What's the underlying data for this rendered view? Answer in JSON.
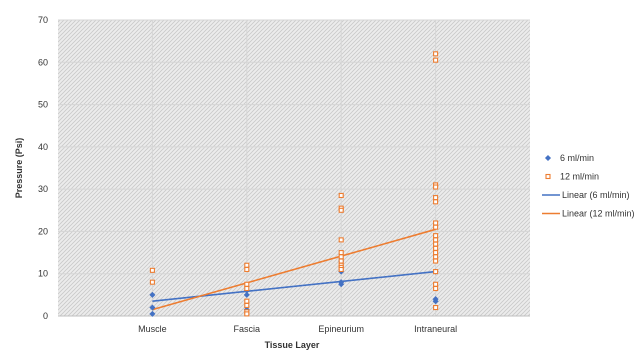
{
  "chart_data": {
    "type": "scatter",
    "title": "",
    "xlabel": "Tissue Layer",
    "ylabel": "Pressure (Psi)",
    "categories": [
      "Muscle",
      "Fascia",
      "Epineurium",
      "Intraneural"
    ],
    "ylim": [
      0,
      70
    ],
    "yticks": [
      0,
      10,
      20,
      30,
      40,
      50,
      60,
      70
    ],
    "grid": "hatched",
    "legend": "right",
    "series": [
      {
        "name": "6 ml/min",
        "marker": "diamond",
        "color": "#4472c4",
        "points": [
          {
            "x": 1,
            "y": 5
          },
          {
            "x": 1,
            "y": 2
          },
          {
            "x": 1,
            "y": 0.5
          },
          {
            "x": 2,
            "y": 6
          },
          {
            "x": 2,
            "y": 5
          },
          {
            "x": 2,
            "y": 1.5
          },
          {
            "x": 3,
            "y": 13
          },
          {
            "x": 3,
            "y": 10.5
          },
          {
            "x": 3,
            "y": 8
          },
          {
            "x": 3,
            "y": 7.5
          },
          {
            "x": 4,
            "y": 10.5
          },
          {
            "x": 4,
            "y": 4
          },
          {
            "x": 4,
            "y": 3.5
          }
        ]
      },
      {
        "name": "12 ml/min",
        "marker": "square",
        "color": "#ed7d31",
        "points": [
          {
            "x": 1,
            "y": 10.8
          },
          {
            "x": 1,
            "y": 8
          },
          {
            "x": 2,
            "y": 12
          },
          {
            "x": 2,
            "y": 11
          },
          {
            "x": 2,
            "y": 7.5
          },
          {
            "x": 2,
            "y": 6.5
          },
          {
            "x": 2,
            "y": 3.5
          },
          {
            "x": 2,
            "y": 2.5
          },
          {
            "x": 2,
            "y": 1
          },
          {
            "x": 2,
            "y": 0.5
          },
          {
            "x": 3,
            "y": 28.5
          },
          {
            "x": 3,
            "y": 25.5
          },
          {
            "x": 3,
            "y": 25
          },
          {
            "x": 3,
            "y": 18
          },
          {
            "x": 3,
            "y": 15
          },
          {
            "x": 3,
            "y": 14
          },
          {
            "x": 3,
            "y": 13
          },
          {
            "x": 3,
            "y": 12
          },
          {
            "x": 3,
            "y": 11.5
          },
          {
            "x": 3,
            "y": 11
          },
          {
            "x": 4,
            "y": 62
          },
          {
            "x": 4,
            "y": 60.5
          },
          {
            "x": 4,
            "y": 31
          },
          {
            "x": 4,
            "y": 30.5
          },
          {
            "x": 4,
            "y": 28
          },
          {
            "x": 4,
            "y": 27
          },
          {
            "x": 4,
            "y": 22
          },
          {
            "x": 4,
            "y": 21
          },
          {
            "x": 4,
            "y": 19
          },
          {
            "x": 4,
            "y": 18
          },
          {
            "x": 4,
            "y": 17
          },
          {
            "x": 4,
            "y": 16
          },
          {
            "x": 4,
            "y": 15
          },
          {
            "x": 4,
            "y": 14
          },
          {
            "x": 4,
            "y": 13
          },
          {
            "x": 4,
            "y": 10.5
          },
          {
            "x": 4,
            "y": 7.5
          },
          {
            "x": 4,
            "y": 6.5
          },
          {
            "x": 4,
            "y": 2
          }
        ]
      },
      {
        "name": "Linear (6 ml/min)",
        "type": "line",
        "color": "#4472c4",
        "points": [
          {
            "x": 1,
            "y": 3.5
          },
          {
            "x": 4,
            "y": 10.5
          }
        ]
      },
      {
        "name": "Linear (12 ml/min)",
        "type": "line",
        "color": "#ed7d31",
        "points": [
          {
            "x": 1,
            "y": 1.5
          },
          {
            "x": 4,
            "y": 20.5
          }
        ]
      }
    ]
  }
}
